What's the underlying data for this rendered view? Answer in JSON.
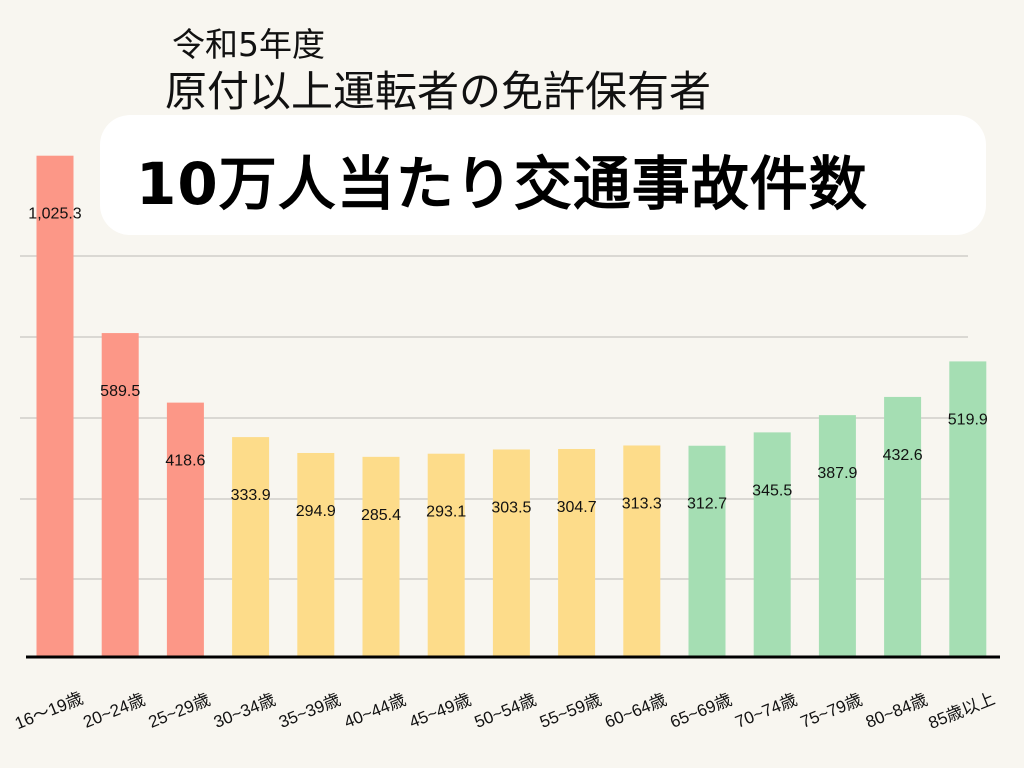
{
  "chart_data": {
    "type": "bar",
    "title": "10万人当たり交通事故件数",
    "subtitle_line1": "令和5年度",
    "subtitle_line2": "原付以上運転者の免許保有者",
    "categories": [
      "16～19歳",
      "20~24歳",
      "25~29歳",
      "30~34歳",
      "35~39歳",
      "40~44歳",
      "45~49歳",
      "50~54歳",
      "55~59歳",
      "60~64歳",
      "65~69歳",
      "70~74歳",
      "75~79歳",
      "80~84歳",
      "85歳以上"
    ],
    "values": [
      1025.3,
      589.5,
      418.6,
      333.9,
      294.9,
      285.4,
      293.1,
      303.5,
      304.7,
      313.3,
      312.7,
      345.5,
      387.9,
      432.6,
      519.9
    ],
    "data_labels": [
      "1,025.3",
      "589.5",
      "418.6",
      "333.9",
      "294.9",
      "285.4",
      "293.1",
      "303.5",
      "304.7",
      "313.3",
      "312.7",
      "345.5",
      "387.9",
      "432.6",
      "519.9"
    ],
    "bar_colors": [
      "#fc9787",
      "#fc9787",
      "#fc9787",
      "#fddc8a",
      "#fddc8a",
      "#fddc8a",
      "#fddc8a",
      "#fddc8a",
      "#fddc8a",
      "#fddc8a",
      "#a5deb3",
      "#a5deb3",
      "#a5deb3",
      "#a5deb3",
      "#a5deb3"
    ],
    "xlabel": "",
    "ylabel": "",
    "grid": true,
    "legend": "none"
  }
}
